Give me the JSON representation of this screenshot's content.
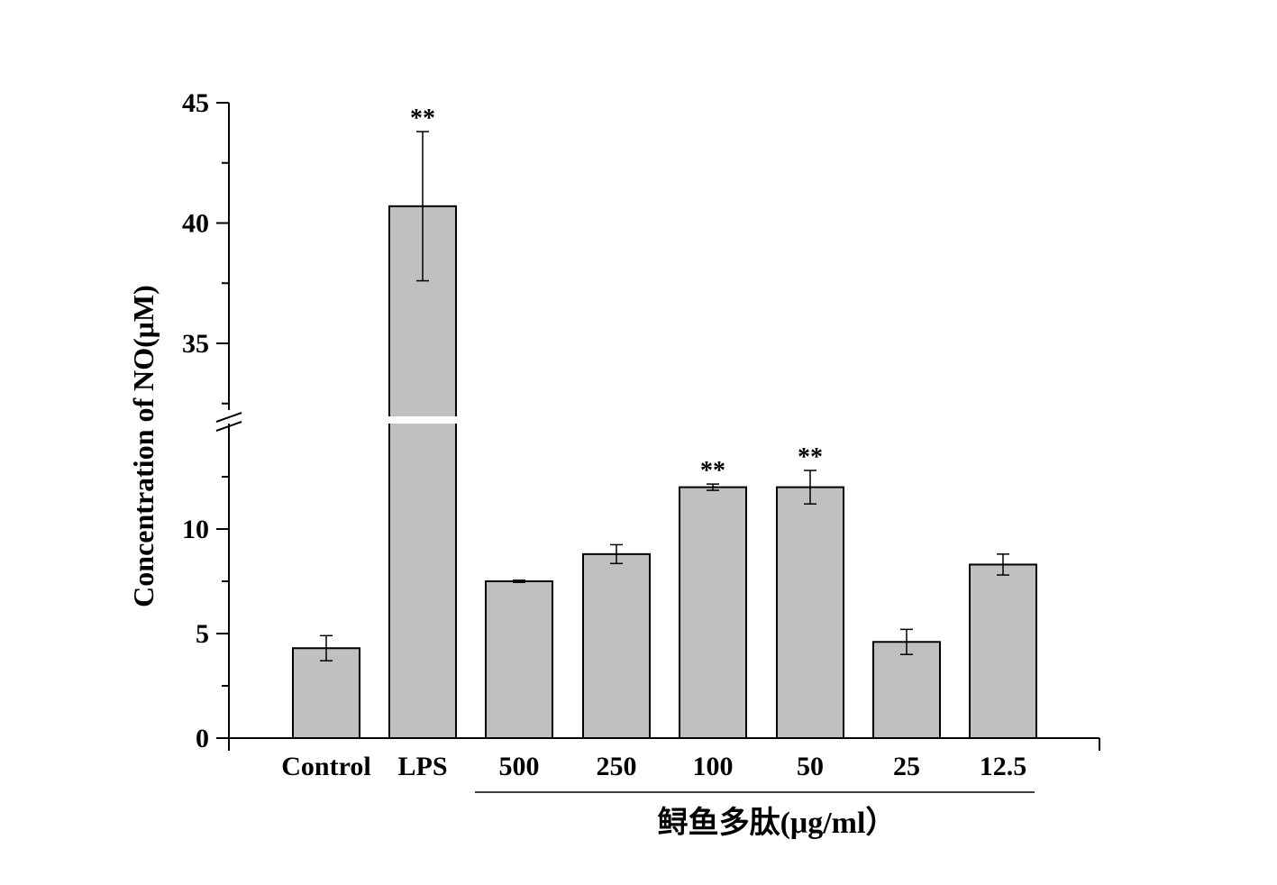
{
  "chart_data": {
    "type": "bar",
    "categories": [
      "Control",
      "LPS",
      "500",
      "250",
      "100",
      "50",
      "25",
      "12.5"
    ],
    "values": [
      4.3,
      40.7,
      7.5,
      8.8,
      12.0,
      12.0,
      4.6,
      8.3
    ],
    "errors": [
      0.6,
      3.1,
      0.05,
      0.45,
      0.15,
      0.8,
      0.6,
      0.5
    ],
    "significance": [
      "",
      "**",
      "",
      "",
      "**",
      "**",
      "",
      ""
    ],
    "ylabel": "Concentration of NO(μM)",
    "group_label": "鲟鱼多肽(μg/ml）",
    "group_categories": [
      "500",
      "250",
      "100",
      "50",
      "25",
      "12.5"
    ],
    "bar_color": "#c0c0c0",
    "axis_break": true,
    "ylim_lower": [
      0,
      15
    ],
    "ylim_upper": [
      32,
      45
    ],
    "yticks_lower": [
      "0",
      "5",
      "10"
    ],
    "yticks_upper": [
      "35",
      "40",
      "45"
    ],
    "grid": false
  }
}
